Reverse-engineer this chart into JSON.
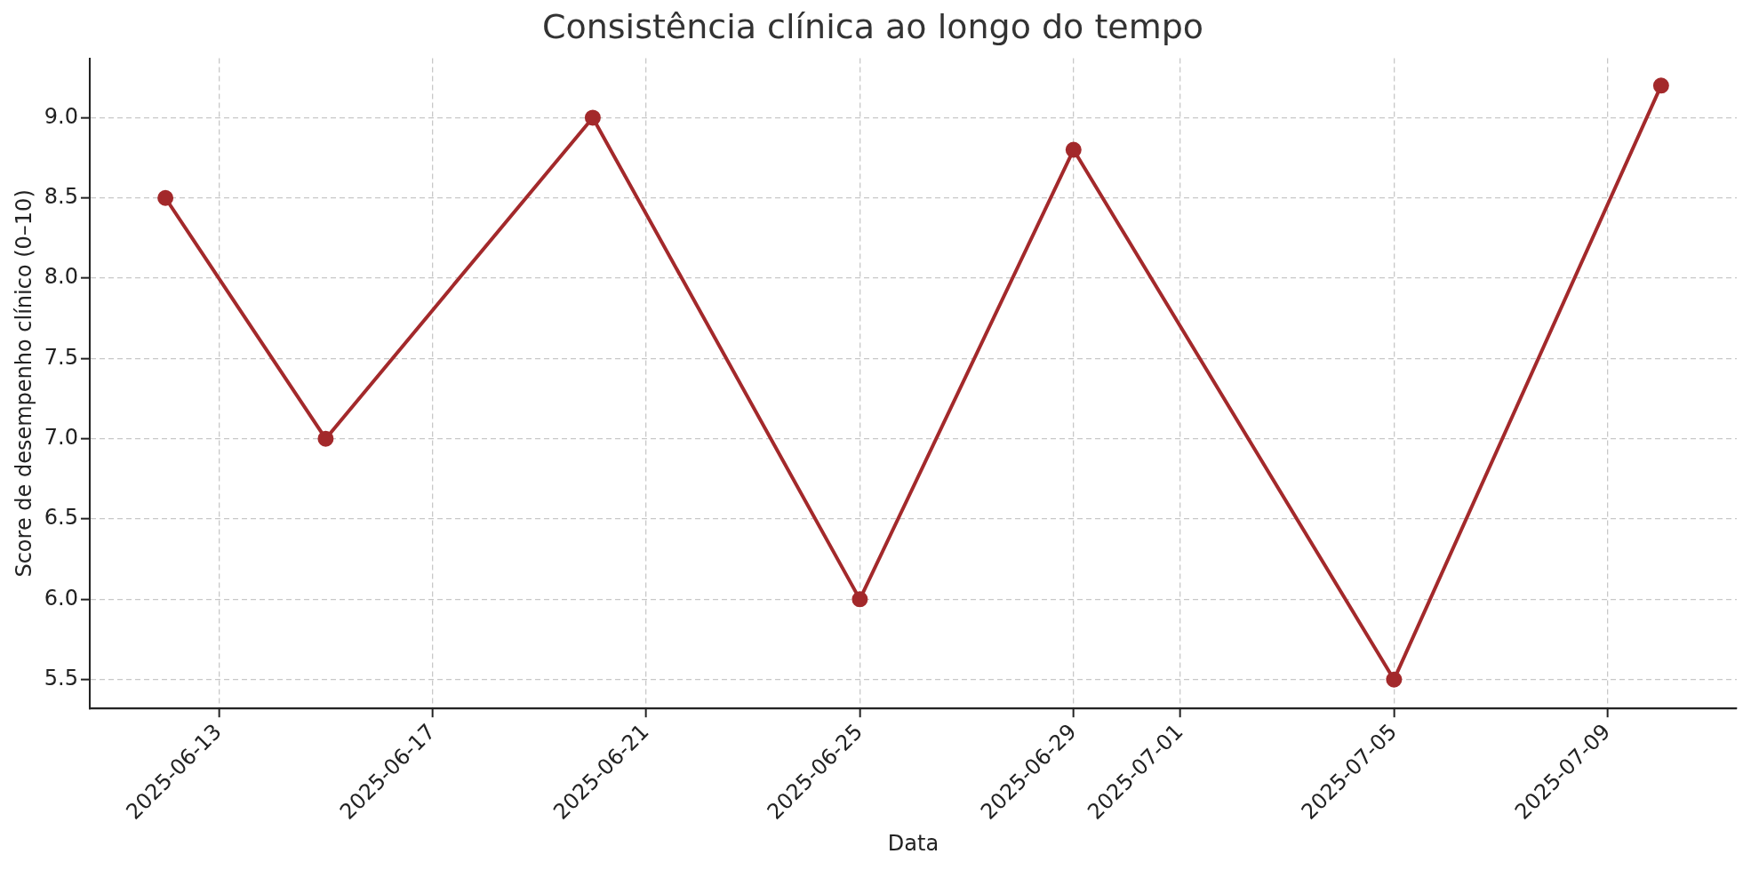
{
  "chart_data": {
    "type": "line",
    "title": "Consistência clínica ao longo do tempo",
    "xlabel": "Data",
    "ylabel": "Score de desempenho clínico (0–10)",
    "x": [
      "2025-06-12",
      "2025-06-15",
      "2025-06-20",
      "2025-06-25",
      "2025-06-29",
      "2025-07-05",
      "2025-07-10"
    ],
    "series": [
      {
        "color": "#a3292b",
        "values": [
          8.5,
          7.0,
          9.0,
          6.0,
          8.8,
          5.5,
          9.2
        ]
      }
    ],
    "xlim": [
      "2025-06-10T14:00",
      "2025-07-11T10:00"
    ],
    "xticks": [
      "2025-06-13",
      "2025-06-17",
      "2025-06-21",
      "2025-06-25",
      "2025-06-29",
      "2025-07-01",
      "2025-07-05",
      "2025-07-09"
    ],
    "ylim": [
      5.32,
      9.37
    ],
    "yticks": [
      5.5,
      {
        "value": 6,
        "label": "6.0"
      },
      6.5,
      {
        "value": 7,
        "label": "7.0"
      },
      7.5,
      {
        "value": 8,
        "label": "8.0"
      },
      8.5,
      {
        "value": 9,
        "label": "9.0"
      }
    ],
    "grid": true,
    "legend": false,
    "marker": "circle",
    "line_style": "solid"
  }
}
